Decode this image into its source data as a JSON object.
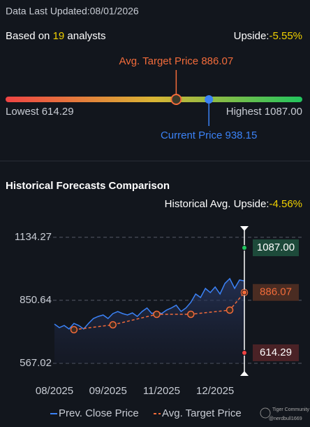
{
  "header": {
    "updated": "Data Last Updated:08/01/2026",
    "based_on": "Based on",
    "analysts_count": "19",
    "analysts": "analysts",
    "upside_label": "Upside:",
    "upside": "-5.55%"
  },
  "gauge": {
    "target_label": "Avg. Target Price",
    "target": 886.07,
    "current_label": "Current Price",
    "current": 938.15,
    "low_label": "Lowest",
    "low": 614.29,
    "high_label": "Highest",
    "high": {
      "value": 1087,
      "label": "1087.00"
    }
  },
  "chart_data": {
    "type": "line",
    "title": "Historical Forecasts Comparison",
    "subtitle_label": "Historical Avg. Upside:",
    "subtitle_value": "-4.56%",
    "xlim": [
      0,
      39
    ],
    "xticks": [
      {
        "value": 0,
        "label": "08/2025"
      },
      {
        "value": 11,
        "label": "09/2025"
      },
      {
        "value": 22,
        "label": "11/2025"
      },
      {
        "value": 33,
        "label": "12/2025"
      }
    ],
    "ylim": [
      567.02,
      1134.27
    ],
    "yticks": [
      567.02,
      850.64,
      1134.27
    ],
    "grid": true,
    "series": [
      {
        "name": "Prev. Close Price",
        "color": "#3b82f6",
        "x": [
          0,
          1,
          2,
          3,
          4,
          5,
          6,
          7,
          8,
          9,
          10,
          11,
          12,
          13,
          14,
          15,
          16,
          17,
          18,
          19,
          20,
          21,
          22,
          23,
          24,
          25,
          26,
          27,
          28,
          29,
          30,
          31,
          32,
          33,
          34,
          35,
          36,
          37,
          38,
          39
        ],
        "values": [
          743.5,
          727.7,
          737.2,
          721.4,
          746.6,
          737.2,
          721.4,
          746.6,
          768.7,
          778.2,
          784.5,
          768.7,
          790.8,
          800.2,
          790.8,
          784.5,
          793.9,
          778.2,
          800.2,
          816.0,
          790.8,
          800.2,
          790.8,
          806.5,
          816.0,
          828.6,
          800.2,
          816.0,
          841.2,
          879.0,
          863.2,
          904.2,
          885.3,
          910.5,
          879.0,
          926.3,
          948.3,
          904.2,
          942.0,
          938.2
        ]
      },
      {
        "name": "Avg. Target Price",
        "color": "#f26b3a",
        "x": [
          4,
          12,
          21,
          28,
          36,
          39
        ],
        "values": [
          718.3,
          740.3,
          787.6,
          787.6,
          806.5,
          886.07
        ]
      }
    ],
    "range_labels": [
      {
        "value": 1087,
        "label": "1087.00",
        "color": "#22c55e"
      },
      {
        "value": 886.07,
        "label": "886.07",
        "color": "#f26b3a"
      },
      {
        "value": 614.29,
        "label": "614.29",
        "color": "#ef4444"
      }
    ],
    "watermark": "Tiger Community",
    "watermark_user": "@nerdbull1669"
  }
}
